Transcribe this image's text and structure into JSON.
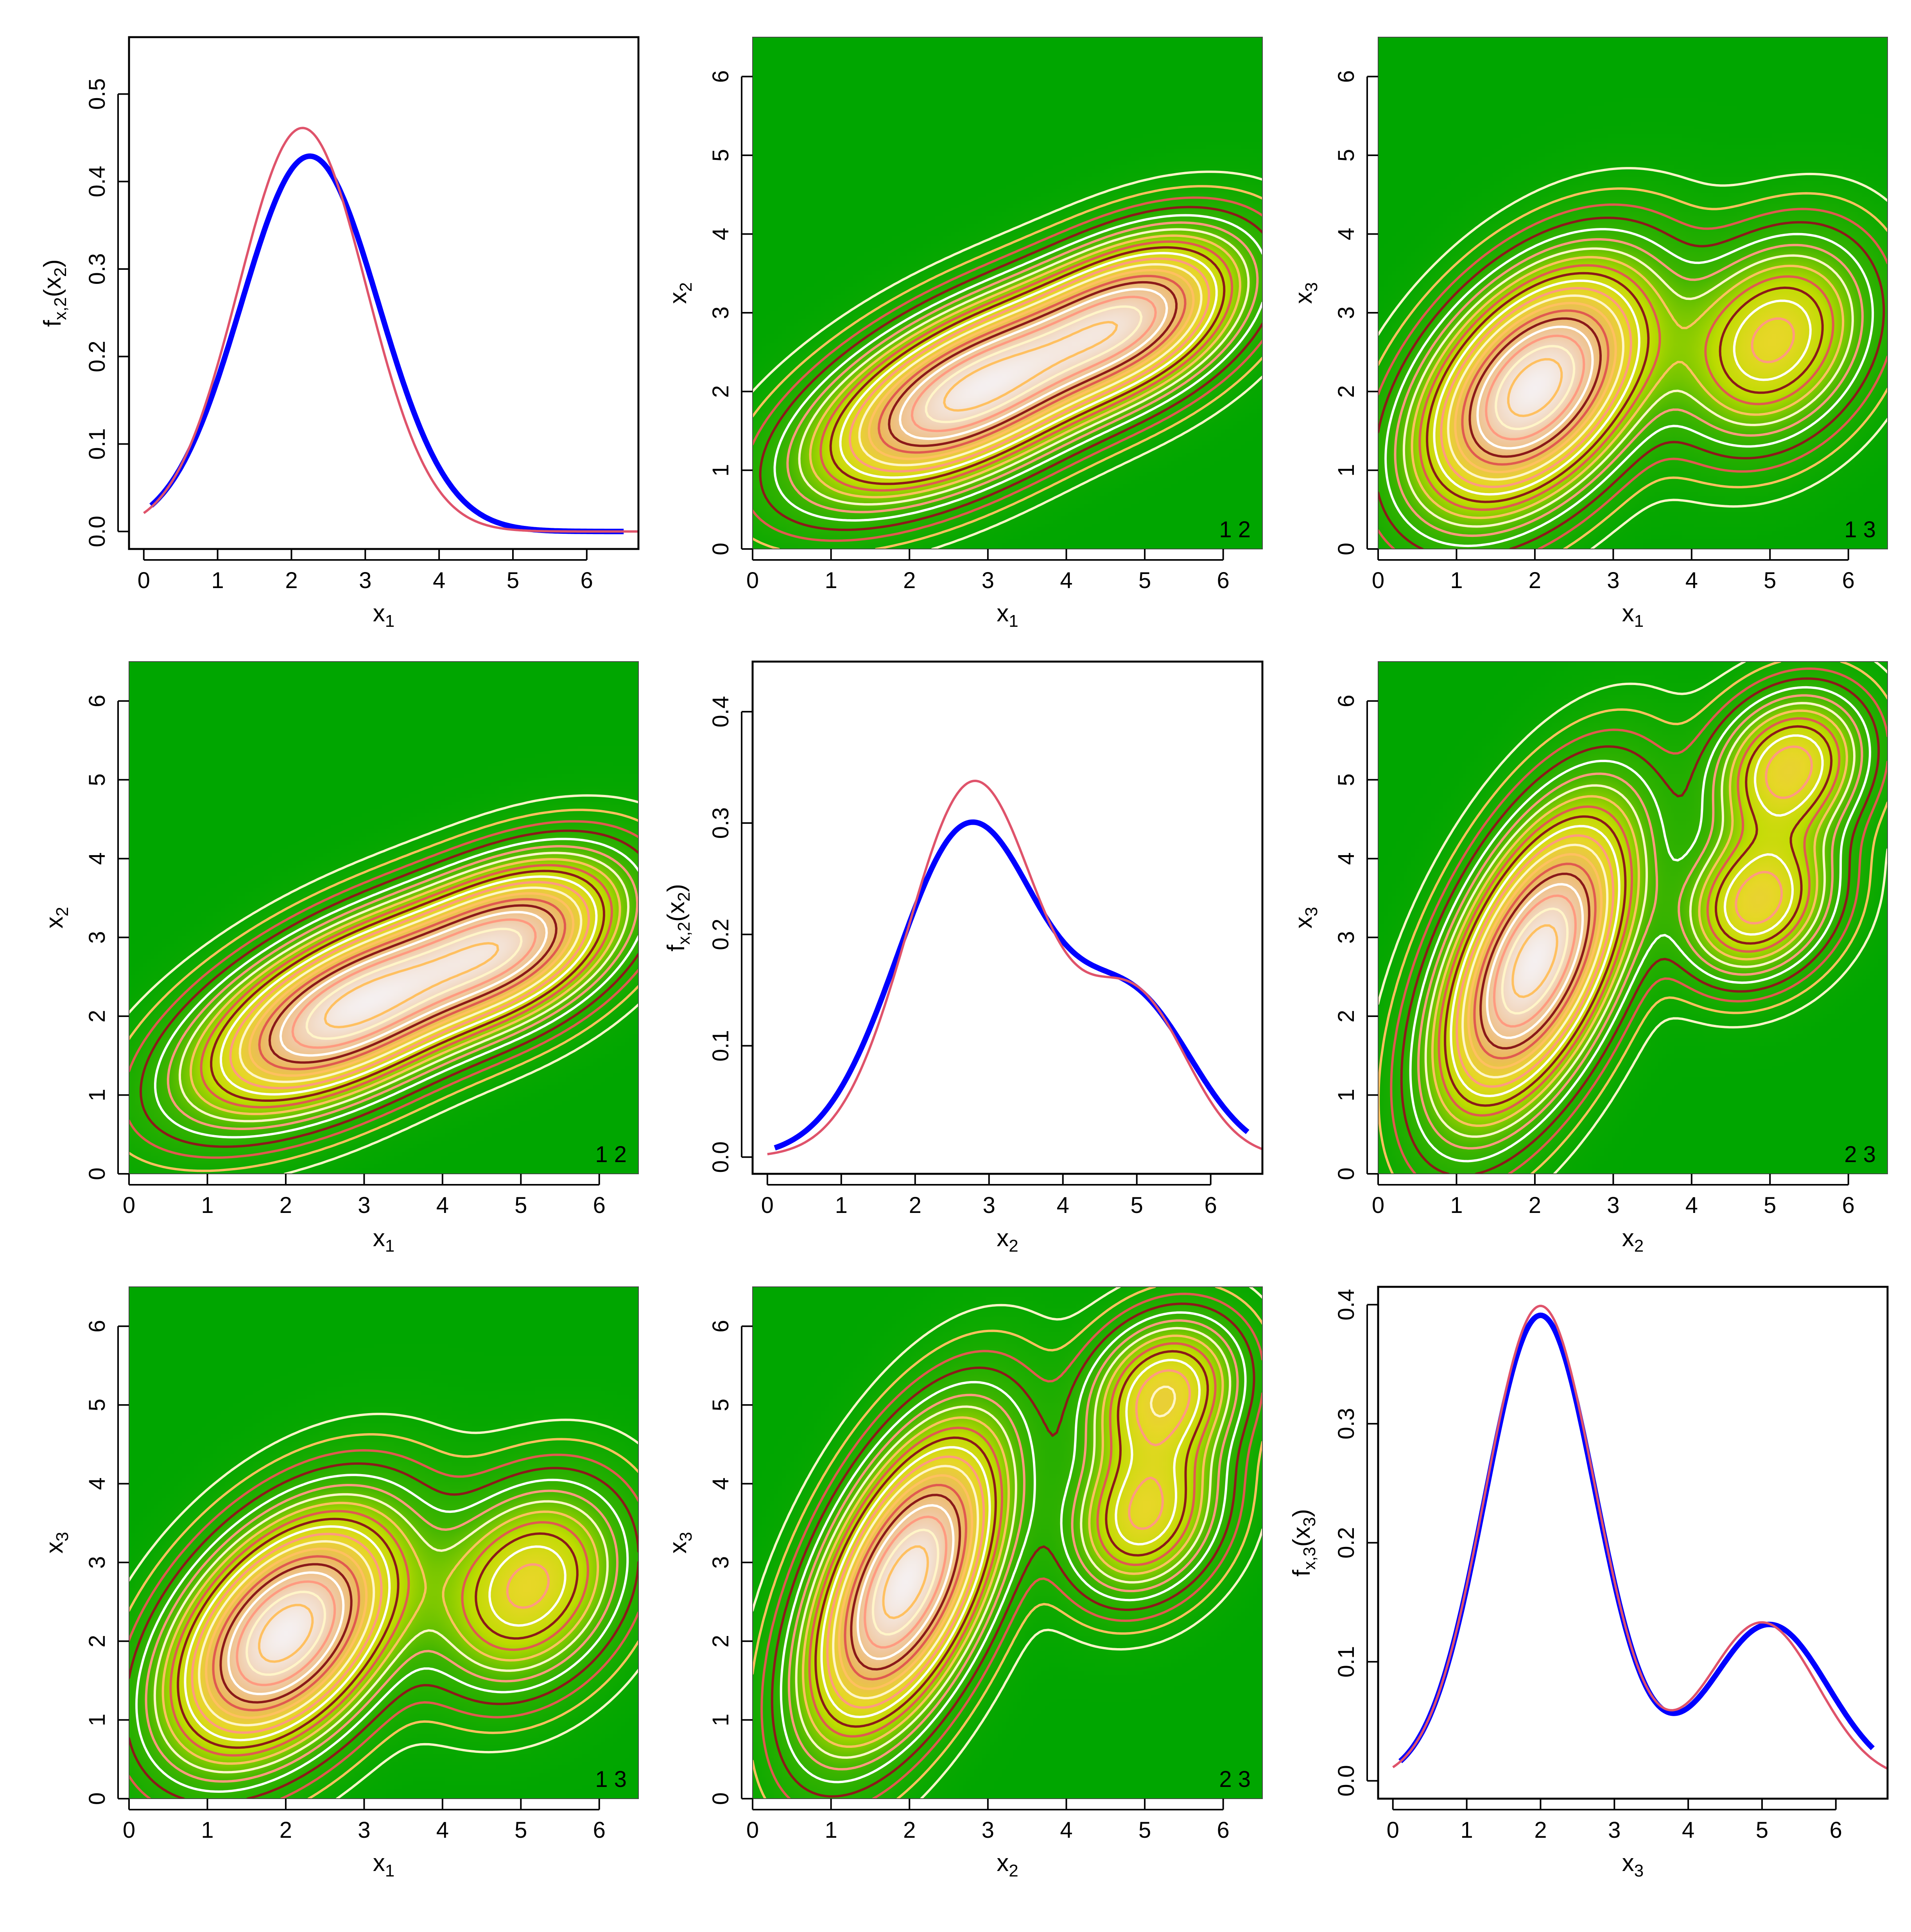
{
  "colors": {
    "density_bg": "#00a600",
    "estimate_line": "#0000ff",
    "true_line": "#df536b",
    "frame": "#000000",
    "contour_cycle": [
      "#fff5c8",
      "#ffc060",
      "#e05a50",
      "#8b1a1a",
      "#ffffff",
      "#ff9a80"
    ]
  },
  "chart_data": [
    {
      "id": "p11",
      "type": "line",
      "panel_row": 1,
      "panel_col": 1,
      "xlabel": "x1",
      "ylabel": "fx,2(x2)",
      "ylabel_parts": {
        "main": "f",
        "sub": "x,2",
        "arg": "(x",
        "argsub": "2",
        "close": ")"
      },
      "xlabel_parts": {
        "main": "x",
        "sub": "1"
      },
      "xlim": [
        -0.2,
        6.7
      ],
      "ylim": [
        -0.02,
        0.565
      ],
      "x_ticks": [
        "0",
        "1",
        "2",
        "3",
        "4",
        "5",
        "6"
      ],
      "y_ticks": [
        "0.0",
        "0.1",
        "0.2",
        "0.3",
        "0.4",
        "0.5"
      ],
      "series": [
        {
          "name": "estimate",
          "color": "#0000ff",
          "width": 14,
          "components": [
            {
              "w": 1.0,
              "mu": 2.25,
              "sd": 0.93
            }
          ],
          "x_range": [
            0.1,
            6.5
          ]
        },
        {
          "name": "true",
          "color": "#df536b",
          "width": 6,
          "components": [
            {
              "w": 1.0,
              "mu": 2.15,
              "sd": 0.865
            }
          ],
          "x_range": [
            0.0,
            6.7
          ]
        }
      ]
    },
    {
      "id": "p12",
      "type": "heatmap",
      "panel_row": 1,
      "panel_col": 2,
      "xlabel_parts": {
        "main": "x",
        "sub": "1"
      },
      "ylabel_parts": {
        "main": "x",
        "sub": "2"
      },
      "xlim": [
        0,
        6.5
      ],
      "ylim": [
        0,
        6.5
      ],
      "x_ticks": [
        "0",
        "1",
        "2",
        "3",
        "4",
        "5",
        "6"
      ],
      "y_ticks": [
        "0",
        "1",
        "2",
        "3",
        "4",
        "5",
        "6"
      ],
      "corner_label": "1 2",
      "components": [
        {
          "w": 0.68,
          "mx": 2.8,
          "my": 2.0,
          "sx": 1.2,
          "sy": 0.78,
          "rho": 0.6
        },
        {
          "w": 0.32,
          "mx": 4.9,
          "my": 2.95,
          "sx": 0.85,
          "sy": 0.65,
          "rho": 0.4
        }
      ]
    },
    {
      "id": "p13",
      "type": "heatmap",
      "panel_row": 1,
      "panel_col": 3,
      "xlabel_parts": {
        "main": "x",
        "sub": "1"
      },
      "ylabel_parts": {
        "main": "x",
        "sub": "3"
      },
      "xlim": [
        0,
        6.5
      ],
      "ylim": [
        0,
        6.5
      ],
      "x_ticks": [
        "0",
        "1",
        "2",
        "3",
        "4",
        "5",
        "6"
      ],
      "y_ticks": [
        "0",
        "1",
        "2",
        "3",
        "4",
        "5",
        "6"
      ],
      "corner_label": "1 3",
      "components": [
        {
          "w": 0.75,
          "mx": 2.0,
          "my": 2.05,
          "sx": 0.9,
          "sy": 0.95,
          "rho": 0.45
        },
        {
          "w": 0.25,
          "mx": 5.05,
          "my": 2.65,
          "sx": 0.75,
          "sy": 0.8,
          "rho": 0.25
        }
      ]
    },
    {
      "id": "p21",
      "type": "heatmap",
      "panel_row": 2,
      "panel_col": 1,
      "xlabel_parts": {
        "main": "x",
        "sub": "1"
      },
      "ylabel_parts": {
        "main": "x",
        "sub": "2"
      },
      "xlim": [
        0,
        6.5
      ],
      "ylim": [
        0,
        6.5
      ],
      "x_ticks": [
        "0",
        "1",
        "2",
        "3",
        "4",
        "5",
        "6"
      ],
      "y_ticks": [
        "0",
        "1",
        "2",
        "3",
        "4",
        "5",
        "6"
      ],
      "corner_label": "1 2",
      "components": [
        {
          "w": 0.68,
          "mx": 2.85,
          "my": 2.1,
          "sx": 1.2,
          "sy": 0.78,
          "rho": 0.6
        },
        {
          "w": 0.32,
          "mx": 4.95,
          "my": 2.95,
          "sx": 0.85,
          "sy": 0.65,
          "rho": 0.4
        }
      ]
    },
    {
      "id": "p22",
      "type": "line",
      "panel_row": 2,
      "panel_col": 2,
      "xlabel_parts": {
        "main": "x",
        "sub": "2"
      },
      "ylabel_parts": {
        "main": "f",
        "sub": "x,2",
        "arg": "(x",
        "argsub": "2",
        "close": ")"
      },
      "xlim": [
        -0.2,
        6.7
      ],
      "ylim": [
        -0.015,
        0.445
      ],
      "x_ticks": [
        "0",
        "1",
        "2",
        "3",
        "4",
        "5",
        "6"
      ],
      "y_ticks": [
        "0.0",
        "0.1",
        "0.2",
        "0.3",
        "0.4"
      ],
      "series": [
        {
          "name": "estimate",
          "color": "#0000ff",
          "width": 14,
          "components": [
            {
              "w": 0.74,
              "mu": 2.75,
              "sd": 0.99
            },
            {
              "w": 0.26,
              "mu": 5.0,
              "sd": 0.8
            }
          ],
          "x_range": [
            0.1,
            6.5
          ]
        },
        {
          "name": "true",
          "color": "#df536b",
          "width": 6,
          "components": [
            {
              "w": 0.76,
              "mu": 2.8,
              "sd": 0.9
            },
            {
              "w": 0.24,
              "mu": 5.0,
              "sd": 0.7
            }
          ],
          "x_range": [
            0.0,
            6.7
          ]
        }
      ]
    },
    {
      "id": "p23",
      "type": "heatmap",
      "panel_row": 2,
      "panel_col": 3,
      "xlabel_parts": {
        "main": "x",
        "sub": "2"
      },
      "ylabel_parts": {
        "main": "x",
        "sub": "3"
      },
      "xlim": [
        0,
        6.5
      ],
      "ylim": [
        0,
        6.5
      ],
      "x_ticks": [
        "0",
        "1",
        "2",
        "3",
        "4",
        "5",
        "6"
      ],
      "y_ticks": [
        "0",
        "1",
        "2",
        "3",
        "4",
        "5",
        "6"
      ],
      "corner_label": "2 3",
      "components": [
        {
          "w": 0.7,
          "mx": 2.0,
          "my": 2.7,
          "sx": 0.75,
          "sy": 1.2,
          "rho": 0.55
        },
        {
          "w": 0.15,
          "mx": 5.25,
          "my": 5.15,
          "sx": 0.6,
          "sy": 0.6,
          "rho": 0.2
        },
        {
          "w": 0.15,
          "mx": 4.85,
          "my": 3.45,
          "sx": 0.6,
          "sy": 0.6,
          "rho": 0.2
        }
      ]
    },
    {
      "id": "p31",
      "type": "heatmap",
      "panel_row": 3,
      "panel_col": 1,
      "xlabel_parts": {
        "main": "x",
        "sub": "1"
      },
      "ylabel_parts": {
        "main": "x",
        "sub": "3"
      },
      "xlim": [
        0,
        6.5
      ],
      "ylim": [
        0,
        6.5
      ],
      "x_ticks": [
        "0",
        "1",
        "2",
        "3",
        "4",
        "5",
        "6"
      ],
      "y_ticks": [
        "0",
        "1",
        "2",
        "3",
        "4",
        "5",
        "6"
      ],
      "corner_label": "1 3",
      "components": [
        {
          "w": 0.75,
          "mx": 2.0,
          "my": 2.1,
          "sx": 0.9,
          "sy": 0.95,
          "rho": 0.45
        },
        {
          "w": 0.25,
          "mx": 5.1,
          "my": 2.7,
          "sx": 0.75,
          "sy": 0.8,
          "rho": 0.25
        }
      ]
    },
    {
      "id": "p32",
      "type": "heatmap",
      "panel_row": 3,
      "panel_col": 2,
      "xlabel_parts": {
        "main": "x",
        "sub": "2"
      },
      "ylabel_parts": {
        "main": "x",
        "sub": "3"
      },
      "xlim": [
        0,
        6.5
      ],
      "ylim": [
        0,
        6.5
      ],
      "x_ticks": [
        "0",
        "1",
        "2",
        "3",
        "4",
        "5",
        "6"
      ],
      "y_ticks": [
        "0",
        "1",
        "2",
        "3",
        "4",
        "5",
        "6"
      ],
      "corner_label": "2 3",
      "components": [
        {
          "w": 0.7,
          "mx": 1.95,
          "my": 2.75,
          "sx": 0.75,
          "sy": 1.2,
          "rho": 0.55
        },
        {
          "w": 0.15,
          "mx": 5.25,
          "my": 5.15,
          "sx": 0.6,
          "sy": 0.6,
          "rho": 0.2
        },
        {
          "w": 0.15,
          "mx": 5.0,
          "my": 3.6,
          "sx": 0.6,
          "sy": 0.65,
          "rho": 0.2
        }
      ]
    },
    {
      "id": "p33",
      "type": "line",
      "panel_row": 3,
      "panel_col": 3,
      "xlabel_parts": {
        "main": "x",
        "sub": "3"
      },
      "ylabel_parts": {
        "main": "f",
        "sub": "x,3",
        "arg": "(x",
        "argsub": "3",
        "close": ")"
      },
      "xlim": [
        -0.2,
        6.7
      ],
      "ylim": [
        -0.015,
        0.415
      ],
      "x_ticks": [
        "0",
        "1",
        "2",
        "3",
        "4",
        "5",
        "6"
      ],
      "y_ticks": [
        "0.0",
        "0.1",
        "0.2",
        "0.3",
        "0.4"
      ],
      "series": [
        {
          "name": "estimate",
          "color": "#0000ff",
          "width": 14,
          "components": [
            {
              "w": 0.74,
              "mu": 2.0,
              "sd": 0.755
            },
            {
              "w": 0.26,
              "mu": 5.1,
              "sd": 0.79
            }
          ],
          "x_range": [
            0.1,
            6.5
          ]
        },
        {
          "name": "true",
          "color": "#df536b",
          "width": 6,
          "components": [
            {
              "w": 0.75,
              "mu": 2.0,
              "sd": 0.75
            },
            {
              "w": 0.25,
              "mu": 5.0,
              "sd": 0.75
            }
          ],
          "x_range": [
            0.0,
            6.7
          ]
        }
      ]
    }
  ]
}
